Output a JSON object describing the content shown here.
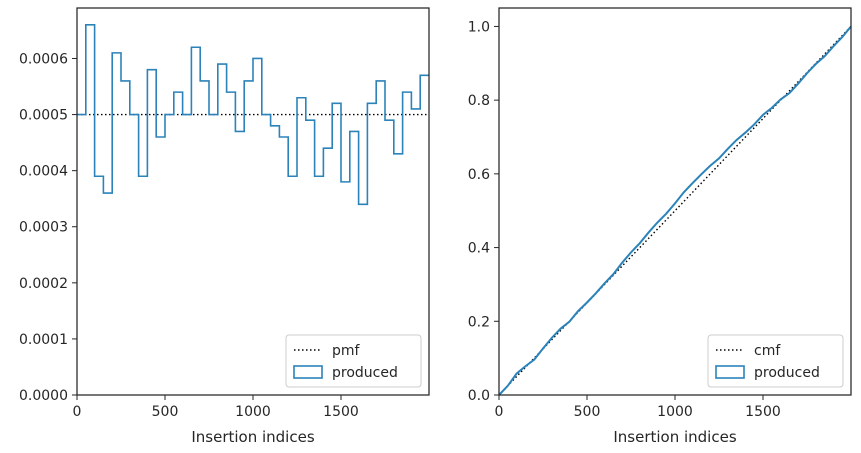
{
  "chart_data": [
    {
      "type": "histogram-step",
      "xlabel": "Insertion indices",
      "ylabel": "",
      "xlim": [
        0,
        2000
      ],
      "ylim": [
        0,
        0.00069
      ],
      "xticks": [
        0,
        500,
        1000,
        1500
      ],
      "yticks": [
        0.0,
        0.0001,
        0.0002,
        0.0003,
        0.0004,
        0.0005,
        0.0006
      ],
      "ytick_labels": [
        "0.0000",
        "0.0001",
        "0.0002",
        "0.0003",
        "0.0004",
        "0.0005",
        "0.0006"
      ],
      "bin_width": 50,
      "series": [
        {
          "name": "pmf",
          "kind": "line",
          "style": "dotted",
          "color": "#000000",
          "x": [
            0,
            2000
          ],
          "y": [
            0.0005,
            0.0005
          ]
        },
        {
          "name": "produced",
          "kind": "step-histogram",
          "color": "#2b83ba",
          "bin_edges": [
            0,
            50,
            100,
            150,
            200,
            250,
            300,
            350,
            400,
            450,
            500,
            550,
            600,
            650,
            700,
            750,
            800,
            850,
            900,
            950,
            1000,
            1050,
            1100,
            1150,
            1200,
            1250,
            1300,
            1350,
            1400,
            1450,
            1500,
            1550,
            1600,
            1650,
            1700,
            1750,
            1800,
            1850,
            1900,
            1950,
            2000
          ],
          "values": [
            0.0005,
            0.00066,
            0.00039,
            0.00036,
            0.00061,
            0.00056,
            0.0005,
            0.00039,
            0.00058,
            0.00046,
            0.0005,
            0.00054,
            0.0005,
            0.00062,
            0.00056,
            0.0005,
            0.00059,
            0.00054,
            0.00047,
            0.00056,
            0.0006,
            0.0005,
            0.00048,
            0.00046,
            0.00039,
            0.00053,
            0.00049,
            0.00039,
            0.00044,
            0.00052,
            0.00038,
            0.00047,
            0.00034,
            0.00052,
            0.00056,
            0.00049,
            0.00043,
            0.00054,
            0.00051,
            0.00057
          ]
        }
      ],
      "legend": {
        "placement": "lower-right",
        "entries": [
          "pmf",
          "produced"
        ]
      }
    },
    {
      "type": "line",
      "xlabel": "Insertion indices",
      "ylabel": "",
      "xlim": [
        0,
        2000
      ],
      "ylim": [
        0,
        1.05
      ],
      "xticks": [
        0,
        500,
        1000,
        1500
      ],
      "yticks": [
        0.0,
        0.2,
        0.4,
        0.6,
        0.8,
        1.0
      ],
      "ytick_labels": [
        "0.0",
        "0.2",
        "0.4",
        "0.6",
        "0.8",
        "1.0"
      ],
      "series": [
        {
          "name": "cmf",
          "kind": "line",
          "style": "dotted",
          "color": "#000000",
          "x": [
            0,
            2000
          ],
          "y": [
            0.0,
            1.0
          ]
        },
        {
          "name": "produced",
          "kind": "line",
          "color": "#2b83ba",
          "x": [
            0,
            50,
            100,
            150,
            200,
            250,
            300,
            350,
            400,
            450,
            500,
            550,
            600,
            650,
            700,
            750,
            800,
            850,
            900,
            950,
            1000,
            1050,
            1100,
            1150,
            1200,
            1250,
            1300,
            1350,
            1400,
            1450,
            1500,
            1550,
            1600,
            1650,
            1700,
            1750,
            1800,
            1850,
            1900,
            1950,
            2000
          ],
          "y": [
            0.0,
            0.025,
            0.058,
            0.078,
            0.096,
            0.126,
            0.155,
            0.18,
            0.199,
            0.228,
            0.251,
            0.276,
            0.303,
            0.328,
            0.359,
            0.387,
            0.412,
            0.441,
            0.468,
            0.492,
            0.52,
            0.55,
            0.575,
            0.599,
            0.622,
            0.642,
            0.668,
            0.692,
            0.712,
            0.734,
            0.76,
            0.779,
            0.802,
            0.819,
            0.845,
            0.873,
            0.898,
            0.919,
            0.946,
            0.971,
            1.0
          ]
        }
      ],
      "legend": {
        "placement": "lower-right",
        "entries": [
          "cmf",
          "produced"
        ]
      }
    }
  ]
}
